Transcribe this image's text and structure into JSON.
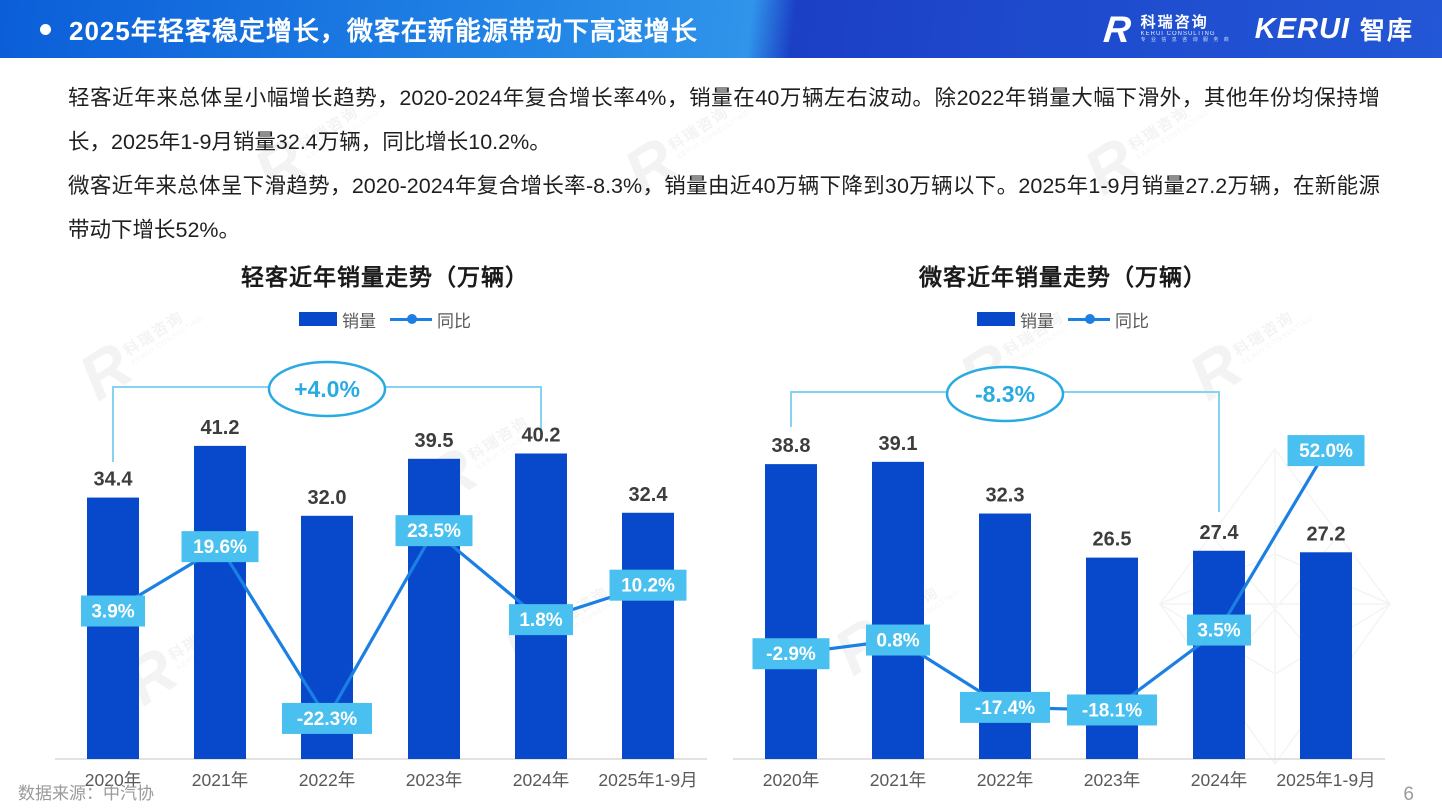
{
  "header": {
    "title": "2025年轻客稳定增长，微客在新能源带动下高速增长",
    "logo": {
      "mark": "R",
      "company_cn": "科瑞咨询",
      "company_en": "KERUI CONSULTING",
      "tagline": "专 业 信 息 咨 询 服 务 商",
      "brand": "KERUI",
      "brand_suffix": "智库"
    }
  },
  "paragraphs": [
    "轻客近年来总体呈小幅增长趋势，2020-2024年复合增长率4%，销量在40万辆左右波动。除2022年销量大幅下滑外，其他年份均保持增长，2025年1-9月销量32.4万辆，同比增长10.2%。",
    "微客近年来总体呈下滑趋势，2020-2024年复合增长率-8.3%，销量由近40万辆下降到30万辆以下。2025年1-9月销量27.2万辆，在新能源带动下增长52%。"
  ],
  "colors": {
    "bar": "#0849cb",
    "line": "#1b7fe3",
    "pct_label_bg": "#49c0ef",
    "pct_label_text": "#ffffff",
    "bubble": "#29abe2",
    "bracket": "#85d2f3",
    "value_label": "#3d3d3d",
    "category_label": "#595959",
    "axis": "#d9d9d9",
    "header_blue": "#0b5ed8"
  },
  "chart_data": [
    {
      "type": "bar",
      "title": "轻客近年销量走势（万辆）",
      "legend": [
        "销量",
        "同比"
      ],
      "categories": [
        "2020年",
        "2021年",
        "2022年",
        "2023年",
        "2024年",
        "2025年1-9月"
      ],
      "series": [
        {
          "name": "销量",
          "type": "bar",
          "unit": "万辆",
          "values": [
            34.4,
            41.2,
            32.0,
            39.5,
            40.2,
            32.4
          ]
        },
        {
          "name": "同比",
          "type": "line",
          "unit": "%",
          "values": [
            3.9,
            19.6,
            -22.3,
            23.5,
            1.8,
            10.2
          ],
          "labels": [
            "3.9%",
            "19.6%",
            "-22.3%",
            "23.5%",
            "1.8%",
            "10.2%"
          ]
        }
      ],
      "value_labels": [
        "34.4",
        "41.2",
        "32.0",
        "39.5",
        "40.2",
        "32.4"
      ],
      "annotation": {
        "label": "+4.0%",
        "from_index": 0,
        "to_index": 4
      },
      "xlabel": "",
      "ylabel": "",
      "ylim": [
        0,
        45
      ],
      "grid": false,
      "legend_position": "top"
    },
    {
      "type": "bar",
      "title": "微客近年销量走势（万辆）",
      "legend": [
        "销量",
        "同比"
      ],
      "categories": [
        "2020年",
        "2021年",
        "2022年",
        "2023年",
        "2024年",
        "2025年1-9月"
      ],
      "series": [
        {
          "name": "销量",
          "type": "bar",
          "unit": "万辆",
          "values": [
            38.8,
            39.1,
            32.3,
            26.5,
            27.4,
            27.2
          ]
        },
        {
          "name": "同比",
          "type": "line",
          "unit": "%",
          "values": [
            -2.9,
            0.8,
            -17.4,
            -18.1,
            3.5,
            52.0
          ],
          "labels": [
            "-2.9%",
            "0.8%",
            "-17.4%",
            "-18.1%",
            "3.5%",
            "52.0%"
          ]
        }
      ],
      "value_labels": [
        "38.8",
        "39.1",
        "32.3",
        "26.5",
        "27.4",
        "27.2"
      ],
      "annotation": {
        "label": "-8.3%",
        "from_index": 0,
        "to_index": 4
      },
      "xlabel": "",
      "ylabel": "",
      "ylim": [
        0,
        45
      ],
      "grid": false,
      "legend_position": "top"
    }
  ],
  "footer": {
    "source": "数据来源：中汽协",
    "page": "6"
  },
  "watermark": {
    "logo_text": "科瑞咨询",
    "sub": "KERUI CONSULTING"
  }
}
